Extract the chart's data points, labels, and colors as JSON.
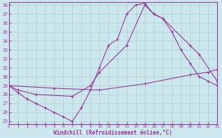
{
  "title": "",
  "xlabel": "Windchill (Refroidissement éolien,°C)",
  "ylabel": "",
  "xlim": [
    0,
    23
  ],
  "ylim": [
    25,
    38
  ],
  "yticks": [
    25,
    26,
    27,
    28,
    29,
    30,
    31,
    32,
    33,
    34,
    35,
    36,
    37,
    38
  ],
  "xticks": [
    0,
    1,
    2,
    3,
    4,
    5,
    6,
    7,
    8,
    9,
    10,
    11,
    12,
    13,
    14,
    15,
    16,
    17,
    18,
    19,
    20,
    21,
    22,
    23
  ],
  "bg_color": "#cce8ee",
  "line_color": "#993399",
  "grid_color": "#aacccc",
  "series1_x": [
    0,
    1,
    2,
    3,
    4,
    5,
    6,
    7,
    8,
    9,
    10,
    11,
    12,
    13,
    14,
    15,
    16,
    17,
    18,
    19,
    20,
    21,
    22,
    23
  ],
  "series1_y": [
    29.0,
    28.2,
    27.5,
    27.0,
    26.5,
    26.0,
    25.5,
    25.0,
    26.5,
    28.5,
    31.0,
    33.5,
    34.2,
    37.0,
    38.0,
    38.2,
    37.0,
    36.5,
    35.0,
    33.0,
    31.5,
    30.0,
    29.5,
    29.0
  ],
  "series2_x": [
    0,
    1,
    3,
    7,
    9,
    10,
    13,
    15,
    16,
    17,
    20,
    21,
    23
  ],
  "series2_y": [
    29.0,
    28.5,
    28.0,
    27.8,
    29.0,
    30.5,
    33.5,
    38.0,
    37.0,
    36.5,
    33.5,
    32.5,
    29.5
  ],
  "series3_x": [
    0,
    5,
    10,
    15,
    20,
    22,
    23
  ],
  "series3_y": [
    29.0,
    28.7,
    28.5,
    29.2,
    30.2,
    30.5,
    30.8
  ]
}
